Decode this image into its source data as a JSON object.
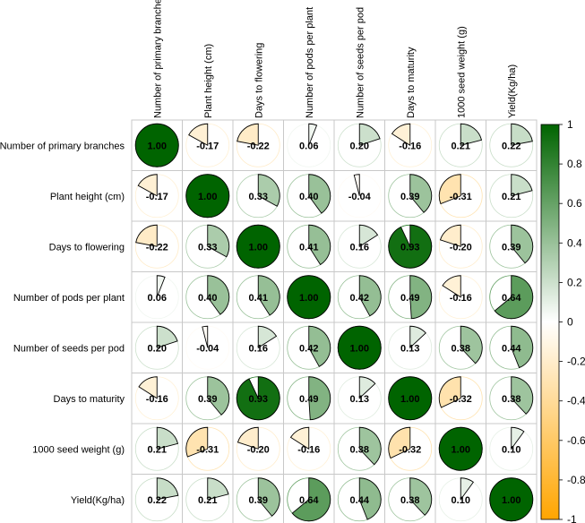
{
  "chart_data": {
    "type": "heatmap",
    "variables": [
      "Number of primary branches",
      "Plant height (cm)",
      "Days to flowering",
      "Number of pods per plant",
      "Number of seeds per pod",
      "Days  to maturity",
      "1000 seed weight (g)",
      "Yield(Kg/ha)"
    ],
    "matrix": [
      [
        1.0,
        -0.17,
        -0.22,
        0.06,
        0.2,
        -0.16,
        0.21,
        0.22
      ],
      [
        -0.17,
        1.0,
        0.33,
        0.4,
        -0.04,
        0.39,
        -0.31,
        0.21
      ],
      [
        -0.22,
        0.33,
        1.0,
        0.41,
        0.16,
        0.93,
        -0.2,
        0.39
      ],
      [
        0.06,
        0.4,
        0.41,
        1.0,
        0.42,
        0.49,
        -0.16,
        0.64
      ],
      [
        0.2,
        -0.04,
        0.16,
        0.42,
        1.0,
        0.13,
        0.38,
        0.44
      ],
      [
        -0.16,
        0.39,
        0.93,
        0.49,
        0.13,
        1.0,
        -0.32,
        0.38
      ],
      [
        0.21,
        -0.31,
        -0.2,
        -0.16,
        0.38,
        -0.32,
        1.0,
        0.1
      ],
      [
        0.22,
        0.21,
        0.39,
        0.64,
        0.44,
        0.38,
        0.1,
        1.0
      ]
    ],
    "value_labels": [
      [
        "1.00",
        "-0.17",
        "-0.22",
        "0.06",
        "0.20",
        "-0.16",
        "0.21",
        "0.22"
      ],
      [
        "-0.17",
        "1.00",
        "0.33",
        "0.40",
        "-0.04",
        "0.39",
        "-0.31",
        "0.21"
      ],
      [
        "-0.22",
        "0.33",
        "1.00",
        "0.41",
        "0.16",
        "0.93",
        "-0.20",
        "0.39"
      ],
      [
        "0.06",
        "0.40",
        "0.41",
        "1.00",
        "0.42",
        "0.49",
        "-0.16",
        "0.64"
      ],
      [
        "0.20",
        "-0.04",
        "0.16",
        "0.42",
        "1.00",
        "0.13",
        "0.38",
        "0.44"
      ],
      [
        "-0.16",
        "0.39",
        "0.93",
        "0.49",
        "0.13",
        "1.00",
        "-0.32",
        "0.38"
      ],
      [
        "0.21",
        "-0.31",
        "-0.20",
        "-0.16",
        "0.38",
        "-0.32",
        "1.00",
        "0.10"
      ],
      [
        "0.22",
        "0.21",
        "0.39",
        "0.64",
        "0.44",
        "0.38",
        "0.10",
        "1.00"
      ]
    ],
    "legend": {
      "range": [
        -1,
        1
      ],
      "ticks": [
        "1",
        "0.8",
        "0.6",
        "0.4",
        "0.2",
        "0",
        "-0.2",
        "-0.4",
        "-0.6",
        "-0.8",
        "-1"
      ],
      "placement": "right"
    },
    "colors": {
      "positive": "#006400",
      "zero": "#ffffff",
      "negative": "#ffa500"
    },
    "title": "",
    "xlabel": "",
    "ylabel": ""
  }
}
